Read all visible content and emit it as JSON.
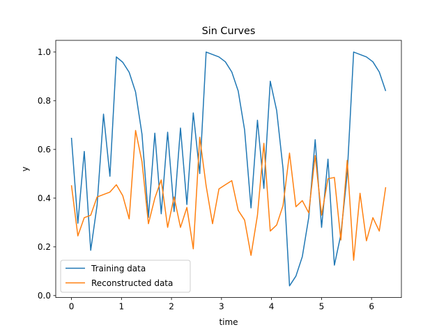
{
  "chart_data": {
    "type": "line",
    "title": "Sin Curves",
    "xlabel": "time",
    "ylabel": "y",
    "xlim": [
      -0.314,
      6.597
    ],
    "ylim": [
      -0.008,
      1.048
    ],
    "xticks": [
      0,
      1,
      2,
      3,
      4,
      5,
      6
    ],
    "yticks": [
      0.0,
      0.2,
      0.4,
      0.6,
      0.8,
      1.0
    ],
    "ytick_labels": [
      "0.0",
      "0.2",
      "0.4",
      "0.6",
      "0.8",
      "1.0"
    ],
    "xtick_labels": [
      "0",
      "1",
      "2",
      "3",
      "4",
      "5",
      "6"
    ],
    "grid": false,
    "legend_position": "lower-left",
    "x": [
      0,
      0.128,
      0.256,
      0.385,
      0.513,
      0.641,
      0.769,
      0.898,
      1.026,
      1.154,
      1.282,
      1.41,
      1.539,
      1.667,
      1.795,
      1.923,
      2.052,
      2.18,
      2.308,
      2.436,
      2.565,
      2.693,
      2.821,
      2.949,
      3.077,
      3.206,
      3.334,
      3.462,
      3.59,
      3.719,
      3.847,
      3.975,
      4.103,
      4.231,
      4.36,
      4.488,
      4.616,
      4.744,
      4.873,
      5.001,
      5.129,
      5.257,
      5.386,
      5.514,
      5.642,
      5.77,
      5.898,
      6.027,
      6.155,
      6.283
    ],
    "series": [
      {
        "name": "Training data",
        "color": "#1f77b4",
        "values": [
          0.648,
          0.297,
          0.592,
          0.186,
          0.372,
          0.745,
          0.49,
          0.98,
          0.958,
          0.917,
          0.836,
          0.663,
          0.321,
          0.667,
          0.336,
          0.671,
          0.345,
          0.688,
          0.374,
          0.75,
          0.501,
          1.0,
          0.99,
          0.98,
          0.96,
          0.918,
          0.84,
          0.68,
          0.36,
          0.72,
          0.44,
          0.88,
          0.76,
          0.52,
          0.04,
          0.08,
          0.16,
          0.32,
          0.64,
          0.28,
          0.56,
          0.125,
          0.25,
          0.5,
          1.0,
          0.99,
          0.98,
          0.96,
          0.918,
          0.84
        ]
      },
      {
        "name": "Reconstructed data",
        "color": "#ff7f0e",
        "values": [
          0.453,
          0.245,
          0.32,
          0.33,
          0.405,
          0.415,
          0.425,
          0.455,
          0.41,
          0.315,
          0.678,
          0.55,
          0.295,
          0.4,
          0.475,
          0.28,
          0.405,
          0.28,
          0.362,
          0.192,
          0.65,
          0.45,
          0.295,
          0.438,
          0.455,
          0.472,
          0.35,
          0.31,
          0.165,
          0.33,
          0.625,
          0.265,
          0.29,
          0.37,
          0.585,
          0.365,
          0.39,
          0.34,
          0.575,
          0.33,
          0.48,
          0.485,
          0.228,
          0.555,
          0.145,
          0.42,
          0.225,
          0.32,
          0.265,
          0.445
        ]
      }
    ]
  }
}
